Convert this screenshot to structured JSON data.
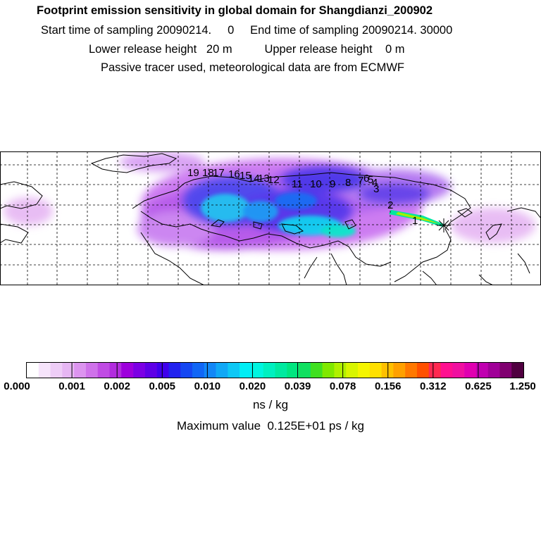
{
  "header": {
    "title": "Footprint emission sensitivity in global domain for Shangdianzi_200902",
    "sampling": "Start time of sampling 20090214.     0     End time of sampling 20090214. 30000",
    "release": "Lower release height   20 m          Upper release height    0 m",
    "tracer": "Passive tracer used, meteorological data are from ECMWF"
  },
  "map": {
    "region": "Eurasia / North Atlantic",
    "trajectory_labels": [
      "1",
      "2",
      "3",
      "4",
      "5",
      "6",
      "7",
      "8",
      "9",
      "10",
      "11",
      "12",
      "13",
      "14",
      "15",
      "16",
      "17",
      "18",
      "19"
    ],
    "receptor_marker": "receptor-star"
  },
  "colorbar": {
    "tick_labels": [
      "0.000",
      "0.001",
      "0.002",
      "0.005",
      "0.010",
      "0.020",
      "0.039",
      "0.078",
      "0.156",
      "0.312",
      "0.625",
      "1.250"
    ],
    "colors": [
      "#ffffff",
      "#f6e4fb",
      "#eecdf7",
      "#e6b6f3",
      "#dc94ef",
      "#cf72ea",
      "#c04ce4",
      "#b22cde",
      "#9d00dc",
      "#7c00e4",
      "#5e00e6",
      "#3f00ec",
      "#2222ee",
      "#1547f2",
      "#1166f5",
      "#1287f7",
      "#10a8f6",
      "#0ec8f5",
      "#00eef5",
      "#00f5e0",
      "#00f0c0",
      "#00eaa0",
      "#00e680",
      "#10e060",
      "#40e020",
      "#80e800",
      "#b0f000",
      "#d8f500",
      "#f5f500",
      "#ffe000",
      "#ffc000",
      "#ffa000",
      "#ff7800",
      "#ff5000",
      "#ff2850",
      "#ff1090",
      "#f010a0",
      "#e000b0",
      "#c000b0",
      "#a00098",
      "#800070",
      "#500040"
    ],
    "units": "ns / kg"
  },
  "footer": {
    "max_value": "Maximum value  0.125E+01 ps / kg"
  }
}
